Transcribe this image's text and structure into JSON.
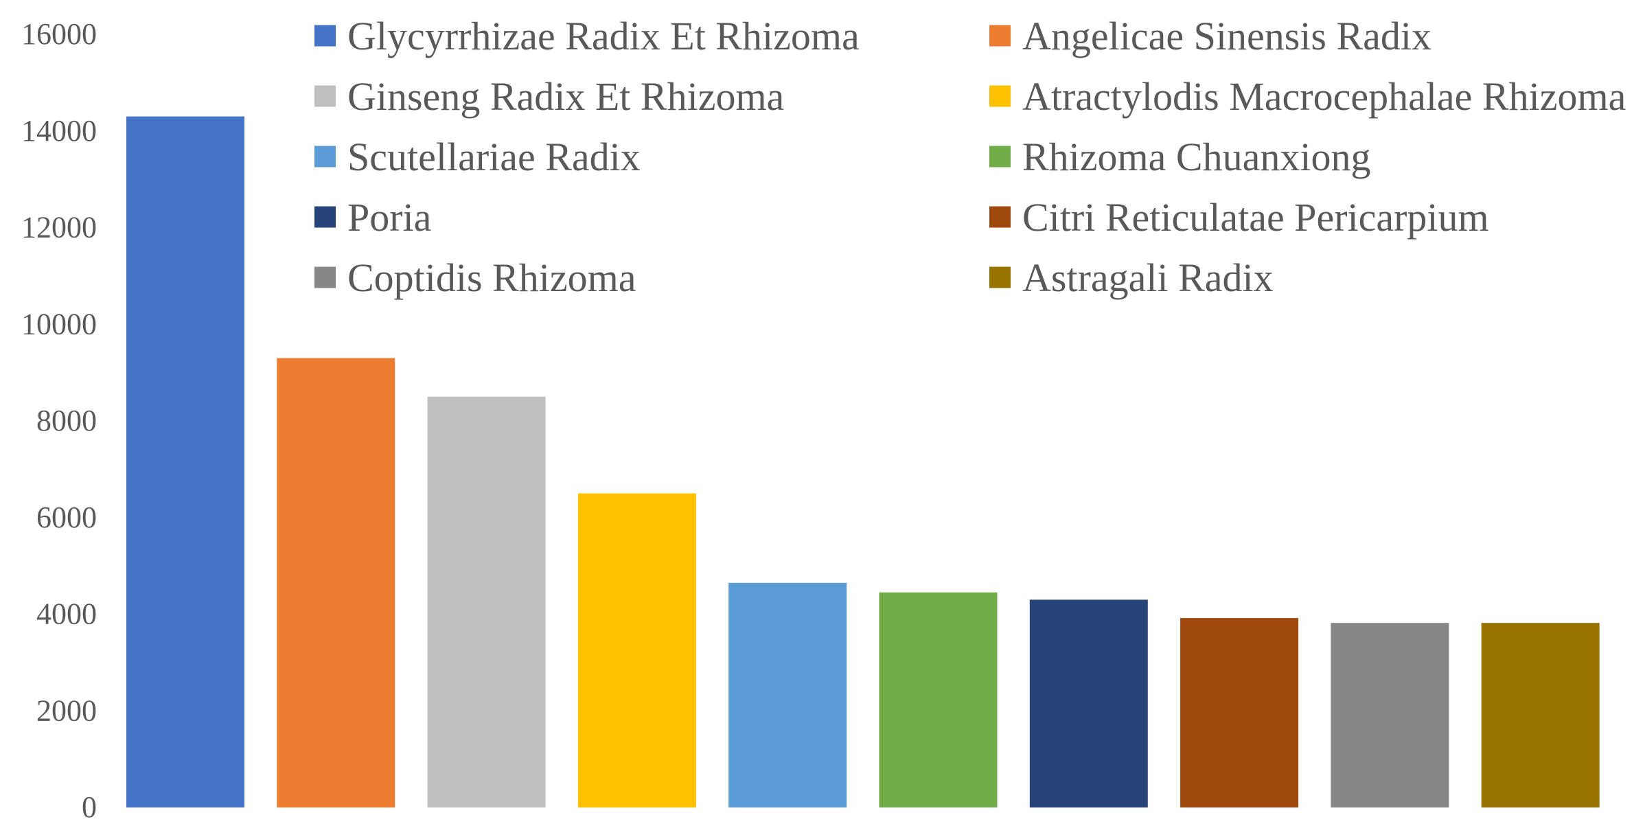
{
  "chart_data": {
    "type": "bar",
    "title": "",
    "xlabel": "",
    "ylabel": "",
    "ylim": [
      0,
      16000
    ],
    "yticks": [
      0,
      2000,
      4000,
      6000,
      8000,
      10000,
      12000,
      14000,
      16000
    ],
    "grid": false,
    "legend_position": "top-right",
    "series": [
      {
        "name": "Glycyrrhizae Radix Et Rhizoma",
        "value": 14300,
        "color": "#4472C4"
      },
      {
        "name": "Angelicae Sinensis Radix",
        "value": 9300,
        "color": "#ED7D31"
      },
      {
        "name": "Ginseng Radix Et Rhizoma",
        "value": 8500,
        "color": "#BFBFBF"
      },
      {
        "name": "Atractylodis Macrocephalae Rhizoma",
        "value": 6500,
        "color": "#FFC000"
      },
      {
        "name": "Scutellariae Radix",
        "value": 4650,
        "color": "#5B9BD5"
      },
      {
        "name": "Rhizoma Chuanxiong",
        "value": 4450,
        "color": "#70AD47"
      },
      {
        "name": "Poria",
        "value": 4300,
        "color": "#264478"
      },
      {
        "name": "Citri Reticulatae Pericarpium",
        "value": 3920,
        "color": "#9E480E"
      },
      {
        "name": "Coptidis Rhizoma",
        "value": 3820,
        "color": "#878787"
      },
      {
        "name": "Astragali Radix",
        "value": 3820,
        "color": "#997300"
      }
    ]
  }
}
